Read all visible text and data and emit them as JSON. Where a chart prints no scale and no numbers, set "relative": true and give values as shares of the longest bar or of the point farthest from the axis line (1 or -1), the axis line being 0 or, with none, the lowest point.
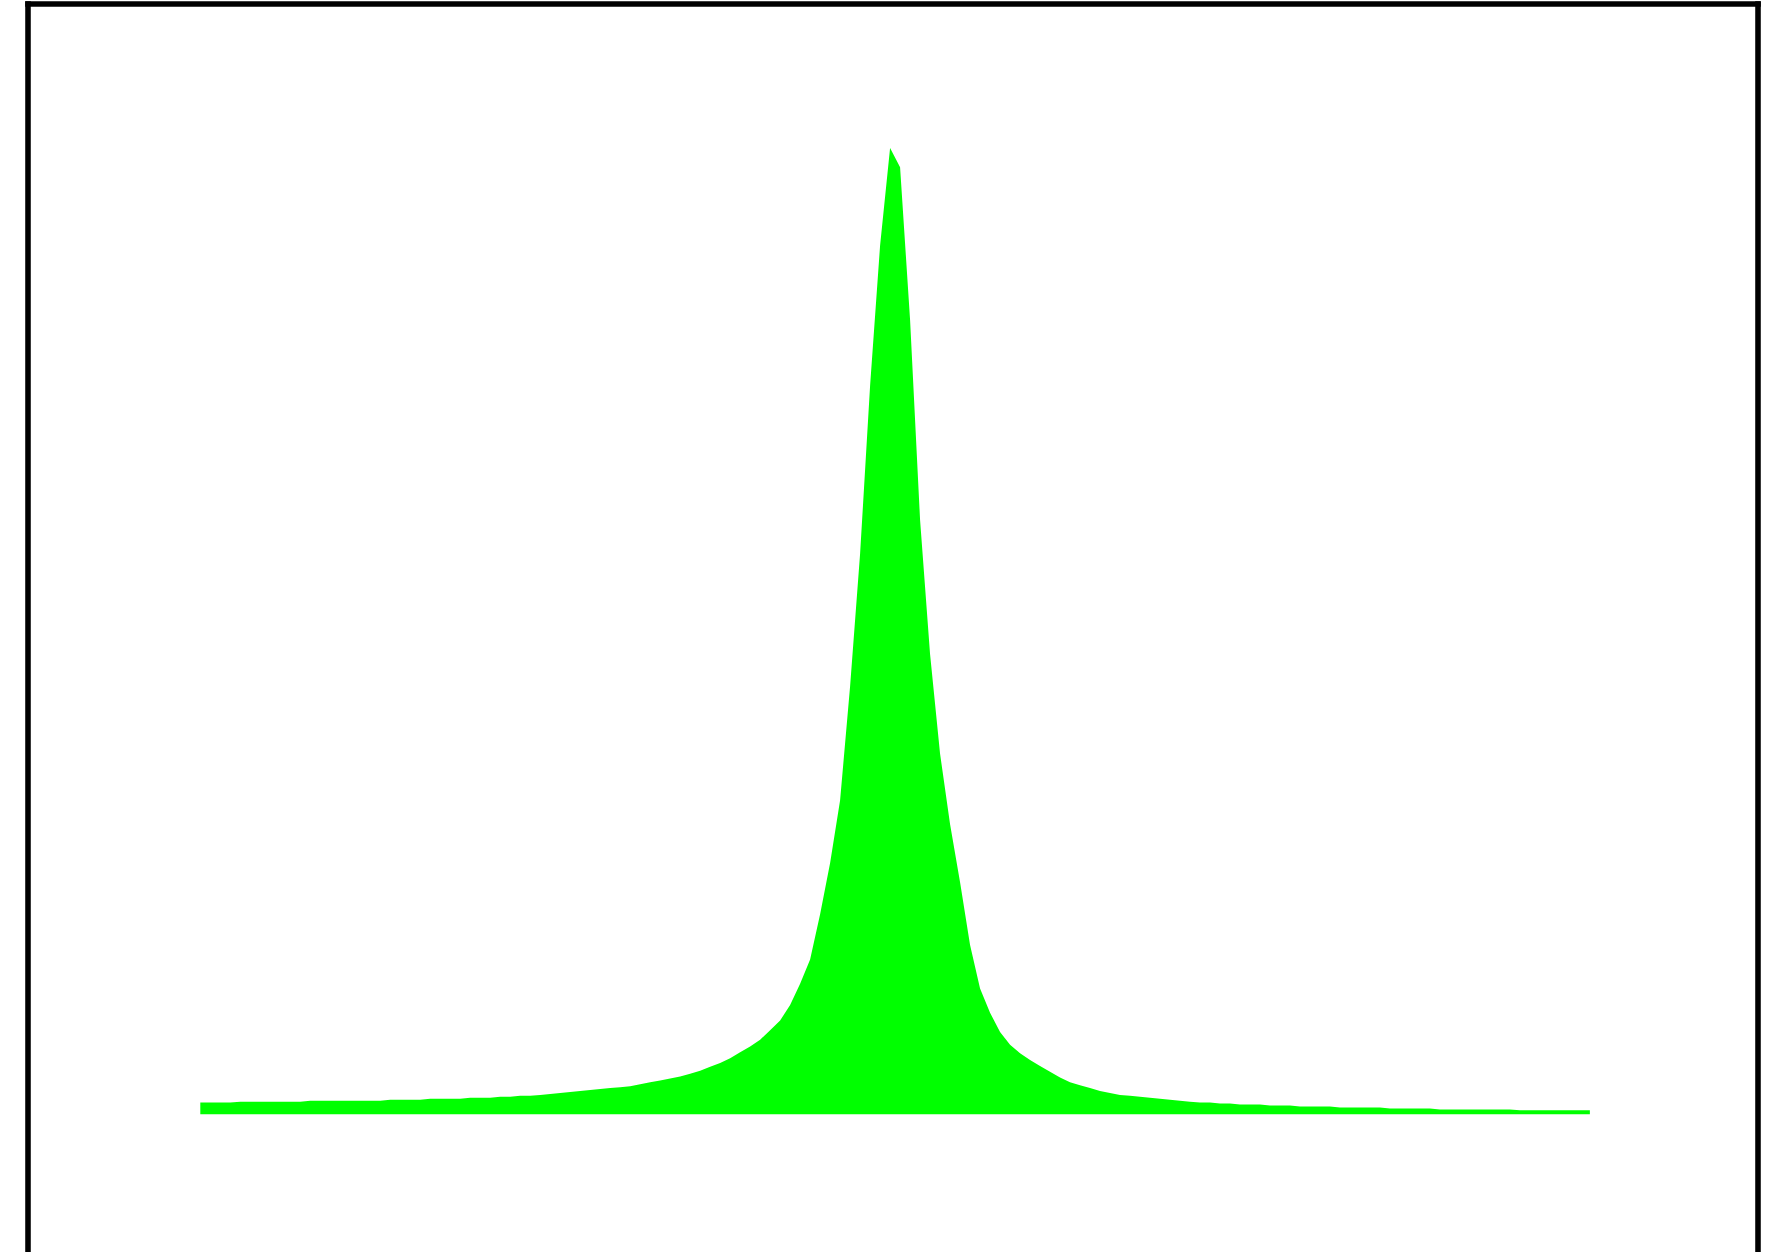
{
  "chart_data": {
    "type": "area",
    "relative": true,
    "categories": [
      null,
      null,
      null,
      null,
      null,
      null,
      null,
      null,
      null,
      null,
      null,
      null,
      null,
      null,
      null,
      null,
      null,
      null,
      null,
      null,
      null,
      null,
      null,
      null,
      null,
      null,
      null,
      null,
      null,
      null,
      null,
      null,
      null,
      null,
      null,
      null,
      null,
      null,
      null,
      null,
      null,
      null,
      null,
      null,
      null,
      null,
      null,
      null,
      null,
      null,
      null,
      null,
      null,
      null,
      null,
      null,
      null,
      null,
      null,
      null,
      null,
      null,
      null,
      null,
      null,
      null,
      null,
      null,
      null,
      null,
      null,
      null,
      null,
      null,
      null,
      null,
      null,
      null,
      null,
      null,
      null,
      null,
      null,
      null,
      null,
      null,
      null,
      null,
      null,
      null,
      null,
      null,
      null,
      null,
      null,
      null,
      null,
      null,
      null,
      null,
      null,
      null,
      null,
      null,
      null,
      null,
      null,
      null,
      null,
      null,
      null,
      null,
      null,
      null,
      null,
      null,
      null,
      null,
      null,
      null,
      null,
      null,
      null,
      null,
      null,
      null,
      null,
      null,
      null,
      null,
      null,
      null,
      null,
      null,
      null,
      null,
      null,
      null,
      null,
      null
    ],
    "series": [
      {
        "color": "#00ff00",
        "values": [
          0.012,
          0.012,
          0.012,
          0.012,
          0.013,
          0.013,
          0.013,
          0.013,
          0.013,
          0.013,
          0.013,
          0.014,
          0.014,
          0.014,
          0.014,
          0.014,
          0.014,
          0.014,
          0.014,
          0.015,
          0.015,
          0.015,
          0.015,
          0.016,
          0.016,
          0.016,
          0.016,
          0.017,
          0.017,
          0.017,
          0.018,
          0.018,
          0.019,
          0.019,
          0.02,
          0.021,
          0.022,
          0.023,
          0.024,
          0.025,
          0.026,
          0.027,
          0.028,
          0.029,
          0.031,
          0.033,
          0.035,
          0.037,
          0.039,
          0.042,
          0.045,
          0.049,
          0.053,
          0.058,
          0.064,
          0.07,
          0.077,
          0.087,
          0.097,
          0.113,
          0.135,
          0.16,
          0.207,
          0.26,
          0.325,
          0.443,
          0.58,
          0.754,
          0.899,
          1.0,
          0.98,
          0.822,
          0.615,
          0.476,
          0.373,
          0.3,
          0.24,
          0.175,
          0.13,
          0.105,
          0.085,
          0.072,
          0.063,
          0.056,
          0.05,
          0.044,
          0.038,
          0.033,
          0.03,
          0.027,
          0.024,
          0.022,
          0.02,
          0.019,
          0.018,
          0.017,
          0.016,
          0.015,
          0.014,
          0.013,
          0.012,
          0.012,
          0.011,
          0.011,
          0.01,
          0.01,
          0.01,
          0.009,
          0.009,
          0.009,
          0.008,
          0.008,
          0.008,
          0.008,
          0.007,
          0.007,
          0.007,
          0.007,
          0.007,
          0.006,
          0.006,
          0.006,
          0.006,
          0.006,
          0.005,
          0.005,
          0.005,
          0.005,
          0.005,
          0.005,
          0.005,
          0.005,
          0.004,
          0.004,
          0.004,
          0.004,
          0.004,
          0.004,
          0.004,
          0.004
        ]
      }
    ]
  }
}
